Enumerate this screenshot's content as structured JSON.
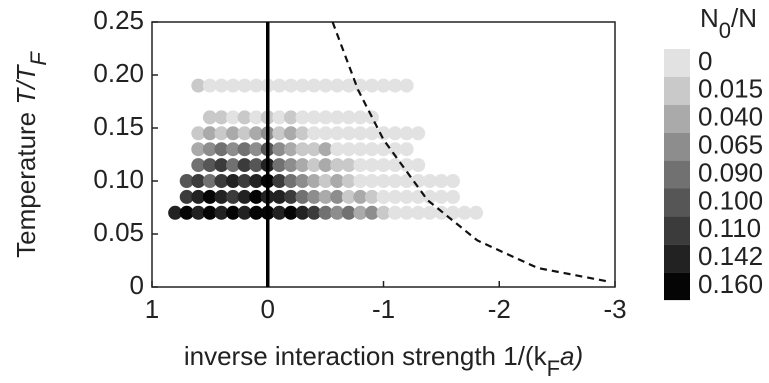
{
  "chart_data": {
    "type": "scatter",
    "xlabel": [
      "inverse interaction strength 1/(k",
      "F",
      "a)"
    ],
    "ylabel": [
      "Temperature ",
      "T/T",
      "F"
    ],
    "xlim": [
      1,
      -3
    ],
    "xticks": [
      1,
      0,
      -1,
      -2,
      -3
    ],
    "ylim": [
      0,
      0.25
    ],
    "yticks": [
      0,
      0.05,
      {
        "value": 0.1,
        "label": "0.10"
      },
      0.15,
      {
        "value": 0.2,
        "label": "0.20"
      },
      0.25
    ],
    "vline_x": 0,
    "curve": {
      "x": [
        -0.56,
        -0.78,
        -1.0,
        -1.38,
        -1.81,
        -2.33,
        -2.95
      ],
      "y": [
        0.25,
        0.186,
        0.139,
        0.082,
        0.044,
        0.018,
        0.005
      ]
    },
    "colorbar": {
      "title": [
        "N",
        "0",
        "/N"
      ],
      "levels": [
        0,
        0.015,
        {
          "value": 0.04,
          "label": "0.040"
        },
        0.065,
        {
          "value": 0.09,
          "label": "0.090"
        },
        {
          "value": 0.1,
          "label": "0.100"
        },
        {
          "value": 0.11,
          "label": "0.110"
        },
        0.142,
        {
          "value": 0.16,
          "label": "0.160"
        }
      ],
      "colors": [
        "#e2e2e2",
        "#c9c9c9",
        "#aaaaaa",
        "#8d8d8d",
        "#717171",
        "#565656",
        "#3b3b3b",
        "#222222",
        "#050505"
      ]
    },
    "series": [
      {
        "x": [
          0.6,
          0.5,
          0.4,
          0.3,
          0.2,
          0.1,
          0,
          -0.1,
          -0.2,
          -0.3,
          -0.4,
          -0.5,
          -0.6,
          -0.7,
          -0.8,
          -0.9,
          -1,
          -1.1,
          -1.2
        ],
        "y": [
          0.19,
          0.19,
          0.19,
          0.19,
          0.19,
          0.19,
          0.19,
          0.19,
          0.19,
          0.19,
          0.19,
          0.19,
          0.19,
          0.19,
          0.19,
          0.19,
          0.19,
          0.19,
          0.19
        ],
        "values": [
          0.015,
          0,
          0,
          0,
          0,
          0,
          0,
          0,
          0,
          0,
          0,
          0,
          0,
          0,
          0,
          0,
          0,
          0,
          0
        ]
      },
      {
        "x": [
          0.5,
          0.4,
          0.3,
          0.2,
          0.1,
          0,
          -0.1,
          -0.2,
          -0.3,
          -0.4,
          -0.5,
          -0.6,
          -0.7,
          -0.8,
          -0.9
        ],
        "y": [
          0.16,
          0.16,
          0.16,
          0.16,
          0.16,
          0.16,
          0.16,
          0.16,
          0.16,
          0.16,
          0.16,
          0.16,
          0.16,
          0.16,
          0.16
        ],
        "values": [
          0.015,
          0.015,
          0,
          0.015,
          0,
          0.015,
          0,
          0.015,
          0,
          0,
          0,
          0,
          0,
          0,
          0
        ]
      },
      {
        "x": [
          0.6,
          0.5,
          0.4,
          0.3,
          0.2,
          0.1,
          0,
          -0.1,
          -0.2,
          -0.3,
          -0.4,
          -0.5,
          -0.6,
          -0.7,
          -0.8,
          -0.9,
          -1,
          -1.1,
          -1.2,
          -1.3
        ],
        "y": [
          0.145,
          0.145,
          0.145,
          0.145,
          0.145,
          0.145,
          0.145,
          0.145,
          0.145,
          0.145,
          0.145,
          0.145,
          0.145,
          0.145,
          0.145,
          0.145,
          0.145,
          0.145,
          0.145,
          0.145
        ],
        "values": [
          0.015,
          0.04,
          0.015,
          0.04,
          0.015,
          0.04,
          0.065,
          0.015,
          0.04,
          0.015,
          0,
          0,
          0,
          0,
          0,
          0,
          0,
          0,
          0,
          0
        ]
      },
      {
        "x": [
          0.6,
          0.5,
          0.4,
          0.3,
          0.2,
          0.1,
          0,
          -0.1,
          -0.2,
          -0.3,
          -0.4,
          -0.5,
          -0.6,
          -0.7,
          -0.8,
          -0.9,
          -1,
          -1.1,
          -1.2
        ],
        "y": [
          0.13,
          0.13,
          0.13,
          0.13,
          0.13,
          0.13,
          0.13,
          0.13,
          0.13,
          0.13,
          0.13,
          0.13,
          0.13,
          0.13,
          0.13,
          0.13,
          0.13,
          0.13,
          0.13
        ],
        "values": [
          0.04,
          0.065,
          0.09,
          0.065,
          0.09,
          0.065,
          0.1,
          0.065,
          0.04,
          0.015,
          0.015,
          0.04,
          0,
          0,
          0,
          0,
          0,
          0,
          0
        ]
      },
      {
        "x": [
          0.6,
          0.5,
          0.4,
          0.3,
          0.2,
          0.1,
          0,
          -0.1,
          -0.2,
          -0.3,
          -0.4,
          -0.5,
          -0.6,
          -0.7,
          -0.8,
          -0.9,
          -1,
          -1.1,
          -1.2,
          -1.3
        ],
        "y": [
          0.115,
          0.115,
          0.115,
          0.115,
          0.115,
          0.115,
          0.115,
          0.115,
          0.115,
          0.115,
          0.115,
          0.115,
          0.115,
          0.115,
          0.115,
          0.115,
          0.115,
          0.115,
          0.115,
          0.115
        ],
        "values": [
          0.09,
          0.1,
          0.11,
          0.09,
          0.11,
          0.1,
          0.142,
          0.09,
          0.065,
          0.04,
          0.015,
          0.04,
          0.015,
          0.015,
          0,
          0,
          0,
          0,
          0,
          0
        ]
      },
      {
        "x": [
          0.7,
          0.6,
          0.5,
          0.4,
          0.3,
          0.2,
          0.1,
          0,
          -0.1,
          -0.2,
          -0.3,
          -0.4,
          -0.5,
          -0.6,
          -0.7,
          -0.8,
          -0.9,
          -1,
          -1.1,
          -1.2,
          -1.3,
          -1.4,
          -1.5,
          -1.6
        ],
        "y": [
          0.1,
          0.1,
          0.1,
          0.1,
          0.1,
          0.1,
          0.1,
          0.1,
          0.1,
          0.1,
          0.1,
          0.1,
          0.1,
          0.1,
          0.1,
          0.1,
          0.1,
          0.1,
          0.1,
          0.1,
          0.1,
          0.1,
          0.1,
          0.1
        ],
        "values": [
          0.1,
          0.11,
          0.09,
          0.11,
          0.142,
          0.11,
          0.142,
          0.16,
          0.11,
          0.09,
          0.065,
          0.04,
          0.015,
          0.04,
          0.015,
          0,
          0,
          0,
          0,
          0,
          0,
          0,
          0,
          0
        ]
      },
      {
        "x": [
          0.7,
          0.6,
          0.5,
          0.4,
          0.3,
          0.2,
          0.1,
          0,
          -0.1,
          -0.2,
          -0.3,
          -0.4,
          -0.5,
          -0.6,
          -0.7,
          -0.8,
          -0.9,
          -1,
          -1.1,
          -1.2,
          -1.3,
          -1.4,
          -1.5,
          -1.6
        ],
        "y": [
          0.085,
          0.085,
          0.085,
          0.085,
          0.085,
          0.085,
          0.085,
          0.085,
          0.085,
          0.085,
          0.085,
          0.085,
          0.085,
          0.085,
          0.085,
          0.085,
          0.085,
          0.085,
          0.085,
          0.085,
          0.085,
          0.085,
          0.085,
          0.085
        ],
        "values": [
          0.11,
          0.142,
          0.16,
          0.142,
          0.11,
          0.142,
          0.16,
          0.142,
          0.142,
          0.11,
          0.09,
          0.065,
          0.04,
          0.065,
          0.015,
          0.04,
          0.015,
          0,
          0,
          0,
          0,
          0,
          0,
          0
        ]
      },
      {
        "x": [
          0.8,
          0.7,
          0.6,
          0.5,
          0.4,
          0.3,
          0.2,
          0.1,
          0,
          -0.1,
          -0.2,
          -0.3,
          -0.4,
          -0.5,
          -0.6,
          -0.7,
          -0.8,
          -0.9,
          -1,
          -1.1,
          -1.2,
          -1.3,
          -1.4,
          -1.5,
          -1.6,
          -1.7,
          -1.8
        ],
        "y": [
          0.07,
          0.07,
          0.07,
          0.07,
          0.07,
          0.07,
          0.07,
          0.07,
          0.07,
          0.07,
          0.07,
          0.07,
          0.07,
          0.07,
          0.07,
          0.07,
          0.07,
          0.07,
          0.07,
          0.07,
          0.07,
          0.07,
          0.07,
          0.07,
          0.07,
          0.07,
          0.07
        ],
        "values": [
          0.142,
          0.16,
          0.142,
          0.16,
          0.142,
          0.16,
          0.142,
          0.16,
          0.16,
          0.142,
          0.16,
          0.142,
          0.11,
          0.09,
          0.065,
          0.09,
          0.04,
          0.065,
          0.015,
          0,
          0,
          0,
          0,
          0,
          0,
          0,
          0
        ]
      }
    ]
  }
}
